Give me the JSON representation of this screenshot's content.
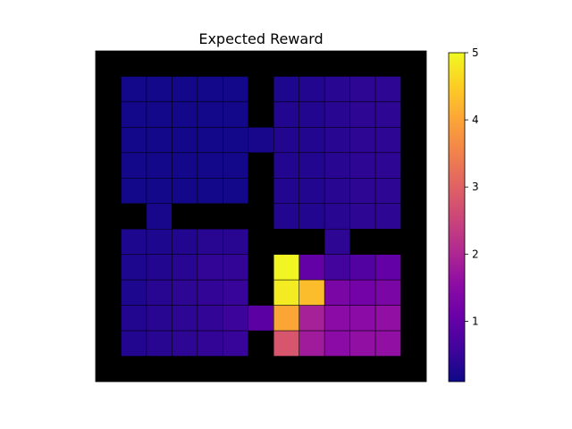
{
  "chart_data": {
    "type": "heatmap",
    "title": "Expected Reward",
    "xlabel": "",
    "ylabel": "",
    "grid_size": [
      13,
      13
    ],
    "wall_color": "#000000",
    "colormap": "plasma",
    "colorbar": {
      "min": 0.1,
      "max": 5,
      "ticks": [
        1,
        2,
        3,
        4,
        5
      ]
    },
    "cells": [
      {
        "row": 1,
        "col": 1,
        "value": 0.15
      },
      {
        "row": 1,
        "col": 2,
        "value": 0.15
      },
      {
        "row": 1,
        "col": 3,
        "value": 0.15
      },
      {
        "row": 1,
        "col": 4,
        "value": 0.15
      },
      {
        "row": 1,
        "col": 5,
        "value": 0.15
      },
      {
        "row": 1,
        "col": 7,
        "value": 0.25
      },
      {
        "row": 1,
        "col": 8,
        "value": 0.3
      },
      {
        "row": 1,
        "col": 9,
        "value": 0.35
      },
      {
        "row": 1,
        "col": 10,
        "value": 0.4
      },
      {
        "row": 1,
        "col": 11,
        "value": 0.4
      },
      {
        "row": 2,
        "col": 1,
        "value": 0.15
      },
      {
        "row": 2,
        "col": 2,
        "value": 0.15
      },
      {
        "row": 2,
        "col": 3,
        "value": 0.15
      },
      {
        "row": 2,
        "col": 4,
        "value": 0.15
      },
      {
        "row": 2,
        "col": 5,
        "value": 0.15
      },
      {
        "row": 2,
        "col": 7,
        "value": 0.3
      },
      {
        "row": 2,
        "col": 8,
        "value": 0.3
      },
      {
        "row": 2,
        "col": 9,
        "value": 0.35
      },
      {
        "row": 2,
        "col": 10,
        "value": 0.4
      },
      {
        "row": 2,
        "col": 11,
        "value": 0.4
      },
      {
        "row": 3,
        "col": 1,
        "value": 0.15
      },
      {
        "row": 3,
        "col": 2,
        "value": 0.15
      },
      {
        "row": 3,
        "col": 3,
        "value": 0.15
      },
      {
        "row": 3,
        "col": 4,
        "value": 0.15
      },
      {
        "row": 3,
        "col": 5,
        "value": 0.15
      },
      {
        "row": 3,
        "col": 6,
        "value": 0.2
      },
      {
        "row": 3,
        "col": 7,
        "value": 0.3
      },
      {
        "row": 3,
        "col": 8,
        "value": 0.3
      },
      {
        "row": 3,
        "col": 9,
        "value": 0.35
      },
      {
        "row": 3,
        "col": 10,
        "value": 0.4
      },
      {
        "row": 3,
        "col": 11,
        "value": 0.4
      },
      {
        "row": 4,
        "col": 1,
        "value": 0.15
      },
      {
        "row": 4,
        "col": 2,
        "value": 0.15
      },
      {
        "row": 4,
        "col": 3,
        "value": 0.15
      },
      {
        "row": 4,
        "col": 4,
        "value": 0.15
      },
      {
        "row": 4,
        "col": 5,
        "value": 0.15
      },
      {
        "row": 4,
        "col": 7,
        "value": 0.3
      },
      {
        "row": 4,
        "col": 8,
        "value": 0.3
      },
      {
        "row": 4,
        "col": 9,
        "value": 0.35
      },
      {
        "row": 4,
        "col": 10,
        "value": 0.4
      },
      {
        "row": 4,
        "col": 11,
        "value": 0.4
      },
      {
        "row": 5,
        "col": 1,
        "value": 0.15
      },
      {
        "row": 5,
        "col": 2,
        "value": 0.15
      },
      {
        "row": 5,
        "col": 3,
        "value": 0.15
      },
      {
        "row": 5,
        "col": 4,
        "value": 0.15
      },
      {
        "row": 5,
        "col": 5,
        "value": 0.15
      },
      {
        "row": 5,
        "col": 7,
        "value": 0.3
      },
      {
        "row": 5,
        "col": 8,
        "value": 0.3
      },
      {
        "row": 5,
        "col": 9,
        "value": 0.35
      },
      {
        "row": 5,
        "col": 10,
        "value": 0.4
      },
      {
        "row": 5,
        "col": 11,
        "value": 0.4
      },
      {
        "row": 6,
        "col": 2,
        "value": 0.2
      },
      {
        "row": 6,
        "col": 7,
        "value": 0.3
      },
      {
        "row": 6,
        "col": 8,
        "value": 0.3
      },
      {
        "row": 6,
        "col": 9,
        "value": 0.35
      },
      {
        "row": 6,
        "col": 10,
        "value": 0.4
      },
      {
        "row": 6,
        "col": 11,
        "value": 0.4
      },
      {
        "row": 7,
        "col": 1,
        "value": 0.25
      },
      {
        "row": 7,
        "col": 2,
        "value": 0.25
      },
      {
        "row": 7,
        "col": 3,
        "value": 0.3
      },
      {
        "row": 7,
        "col": 4,
        "value": 0.35
      },
      {
        "row": 7,
        "col": 5,
        "value": 0.35
      },
      {
        "row": 7,
        "col": 9,
        "value": 0.4
      },
      {
        "row": 8,
        "col": 1,
        "value": 0.25
      },
      {
        "row": 8,
        "col": 2,
        "value": 0.3
      },
      {
        "row": 8,
        "col": 3,
        "value": 0.35
      },
      {
        "row": 8,
        "col": 4,
        "value": 0.45
      },
      {
        "row": 8,
        "col": 5,
        "value": 0.45
      },
      {
        "row": 8,
        "col": 7,
        "value": 4.95
      },
      {
        "row": 8,
        "col": 8,
        "value": 1.0
      },
      {
        "row": 8,
        "col": 9,
        "value": 0.6
      },
      {
        "row": 8,
        "col": 10,
        "value": 0.8
      },
      {
        "row": 8,
        "col": 11,
        "value": 1.0
      },
      {
        "row": 9,
        "col": 1,
        "value": 0.25
      },
      {
        "row": 9,
        "col": 2,
        "value": 0.35
      },
      {
        "row": 9,
        "col": 3,
        "value": 0.4
      },
      {
        "row": 9,
        "col": 4,
        "value": 0.45
      },
      {
        "row": 9,
        "col": 5,
        "value": 0.5
      },
      {
        "row": 9,
        "col": 7,
        "value": 4.85
      },
      {
        "row": 9,
        "col": 8,
        "value": 4.3
      },
      {
        "row": 9,
        "col": 9,
        "value": 1.3
      },
      {
        "row": 9,
        "col": 10,
        "value": 1.2
      },
      {
        "row": 9,
        "col": 11,
        "value": 1.3
      },
      {
        "row": 10,
        "col": 1,
        "value": 0.3
      },
      {
        "row": 10,
        "col": 2,
        "value": 0.35
      },
      {
        "row": 10,
        "col": 3,
        "value": 0.4
      },
      {
        "row": 10,
        "col": 4,
        "value": 0.45
      },
      {
        "row": 10,
        "col": 5,
        "value": 0.55
      },
      {
        "row": 10,
        "col": 6,
        "value": 0.9
      },
      {
        "row": 10,
        "col": 7,
        "value": 4.0
      },
      {
        "row": 10,
        "col": 8,
        "value": 1.9
      },
      {
        "row": 10,
        "col": 9,
        "value": 1.5
      },
      {
        "row": 10,
        "col": 10,
        "value": 1.5
      },
      {
        "row": 10,
        "col": 11,
        "value": 1.6
      },
      {
        "row": 11,
        "col": 1,
        "value": 0.3
      },
      {
        "row": 11,
        "col": 2,
        "value": 0.35
      },
      {
        "row": 11,
        "col": 3,
        "value": 0.4
      },
      {
        "row": 11,
        "col": 4,
        "value": 0.45
      },
      {
        "row": 11,
        "col": 5,
        "value": 0.5
      },
      {
        "row": 11,
        "col": 7,
        "value": 2.8
      },
      {
        "row": 11,
        "col": 8,
        "value": 1.8
      },
      {
        "row": 11,
        "col": 9,
        "value": 1.5
      },
      {
        "row": 11,
        "col": 10,
        "value": 1.6
      },
      {
        "row": 11,
        "col": 11,
        "value": 1.6
      }
    ]
  }
}
